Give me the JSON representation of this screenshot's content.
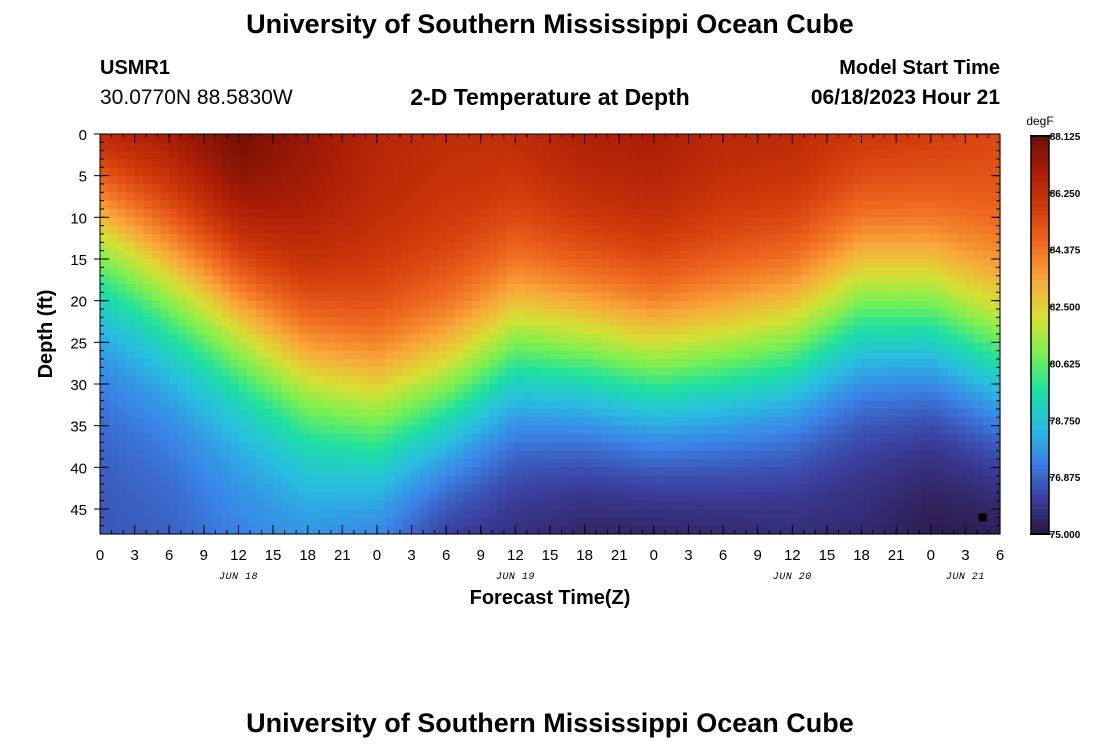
{
  "header": {
    "title": "University of Southern Mississippi Ocean Cube",
    "station_id": "USMR1",
    "coordinates": "30.0770N  88.5830W",
    "subtitle": "2-D Temperature at Depth",
    "model_start_label": "Model Start Time",
    "model_start_value": "06/18/2023 Hour 21"
  },
  "footer": {
    "title": "University of Southern Mississippi Ocean Cube"
  },
  "chart_data": {
    "type": "heatmap",
    "title": "2-D Temperature at Depth",
    "xlabel": "Forecast Time(Z)",
    "ylabel": "Depth (ft)",
    "units": "degF",
    "x_range_hours": [
      0,
      78
    ],
    "y_range_ft": [
      0,
      48
    ],
    "y_inverted": true,
    "x_ticks": [
      "0",
      "3",
      "6",
      "9",
      "12",
      "15",
      "18",
      "21",
      "0",
      "3",
      "6",
      "9",
      "12",
      "15",
      "18",
      "21",
      "0",
      "3",
      "6",
      "9",
      "12",
      "15",
      "18",
      "21",
      "0",
      "3",
      "6"
    ],
    "y_ticks": [
      0,
      5,
      10,
      15,
      20,
      25,
      30,
      35,
      40,
      45
    ],
    "date_labels": [
      {
        "text": "JUN 18",
        "hour": 12
      },
      {
        "text": "JUN 19",
        "hour": 36
      },
      {
        "text": "JUN 20",
        "hour": 60
      },
      {
        "text": "JUN 21",
        "hour": 75
      }
    ],
    "colorbar": {
      "min": 75.0,
      "max": 88.125,
      "labels": [
        "88.125",
        "86.250",
        "84.375",
        "82.500",
        "80.625",
        "78.750",
        "76.875",
        "75.000"
      ],
      "colors": [
        "#2b1540",
        "#3b3f9e",
        "#3b82e8",
        "#28bfe0",
        "#1fe0a0",
        "#7cf050",
        "#d8e034",
        "#f8a83a",
        "#f06a20",
        "#d23c0c",
        "#ab1e06",
        "#6f0e02"
      ]
    },
    "profile_hours": [
      0,
      6,
      12,
      18,
      24,
      30,
      36,
      42,
      48,
      54,
      60,
      66,
      72,
      78
    ],
    "thermocline_depth_ft": [
      11,
      17,
      22,
      29,
      33,
      31,
      25,
      26,
      28,
      27,
      25,
      20,
      21,
      26
    ],
    "surface_temp_f": [
      86.4,
      87.0,
      88.0,
      87.3,
      86.6,
      86.3,
      86.3,
      86.8,
      86.9,
      86.5,
      86.4,
      85.9,
      85.7,
      85.4
    ],
    "bottom_temp_f": [
      76.6,
      76.8,
      77.4,
      77.8,
      77.5,
      76.2,
      75.8,
      75.5,
      75.5,
      75.6,
      75.7,
      75.6,
      75.2,
      75.3
    ],
    "marker": {
      "hour": 76.5,
      "depth_ft": 46
    }
  }
}
